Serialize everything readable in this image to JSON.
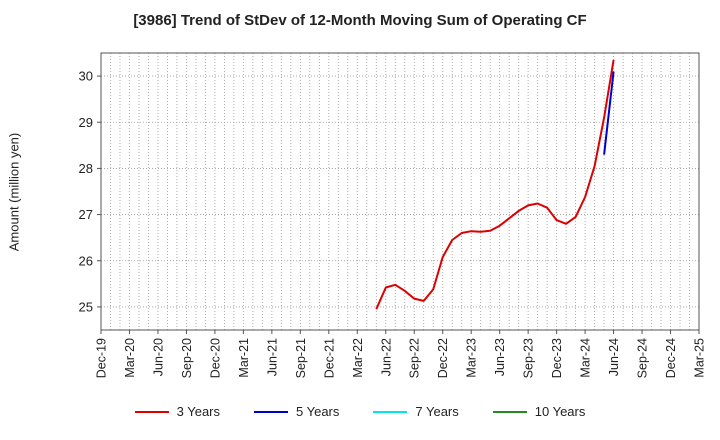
{
  "chart_data": {
    "type": "line",
    "title": "[3986]  Trend of StDev of 12-Month Moving Sum of Operating CF",
    "ylabel": "Amount (million yen)",
    "xlabel": "",
    "ylim": [
      24.5,
      30.5
    ],
    "yticks": [
      25,
      26,
      27,
      28,
      29,
      30
    ],
    "x_ticks": [
      "Dec-19",
      "Mar-20",
      "Jun-20",
      "Sep-20",
      "Dec-20",
      "Mar-21",
      "Jun-21",
      "Sep-21",
      "Dec-21",
      "Mar-22",
      "Jun-22",
      "Sep-22",
      "Dec-22",
      "Mar-23",
      "Jun-23",
      "Sep-23",
      "Dec-23",
      "Mar-24",
      "Jun-24",
      "Sep-24",
      "Dec-24",
      "Mar-25"
    ],
    "grid": true,
    "legend_position": "bottom",
    "series": [
      {
        "name": "3 Years",
        "color": "#dd0000",
        "x": [
          "May-22",
          "Jun-22",
          "Jul-22",
          "Aug-22",
          "Sep-22",
          "Oct-22",
          "Nov-22",
          "Dec-22",
          "Jan-23",
          "Feb-23",
          "Mar-23",
          "Apr-23",
          "May-23",
          "Jun-23",
          "Jul-23",
          "Aug-23",
          "Sep-23",
          "Oct-23",
          "Nov-23",
          "Dec-23",
          "Jan-24",
          "Feb-24",
          "Mar-24",
          "Apr-24",
          "May-24",
          "Jun-24"
        ],
        "values": [
          24.95,
          25.42,
          25.48,
          25.35,
          25.18,
          25.13,
          25.38,
          26.08,
          26.45,
          26.6,
          26.64,
          26.63,
          26.65,
          26.76,
          26.92,
          27.08,
          27.2,
          27.24,
          27.15,
          26.88,
          26.8,
          26.95,
          27.38,
          28.05,
          29.1,
          30.35
        ]
      },
      {
        "name": "5 Years",
        "color": "#0000cc",
        "x": [
          "May-24",
          "Jun-24"
        ],
        "values": [
          28.3,
          30.1
        ]
      },
      {
        "name": "7 Years",
        "color": "#00e5ee",
        "x": [],
        "values": []
      },
      {
        "name": "10 Years",
        "color": "#228b22",
        "x": [],
        "values": []
      }
    ]
  }
}
